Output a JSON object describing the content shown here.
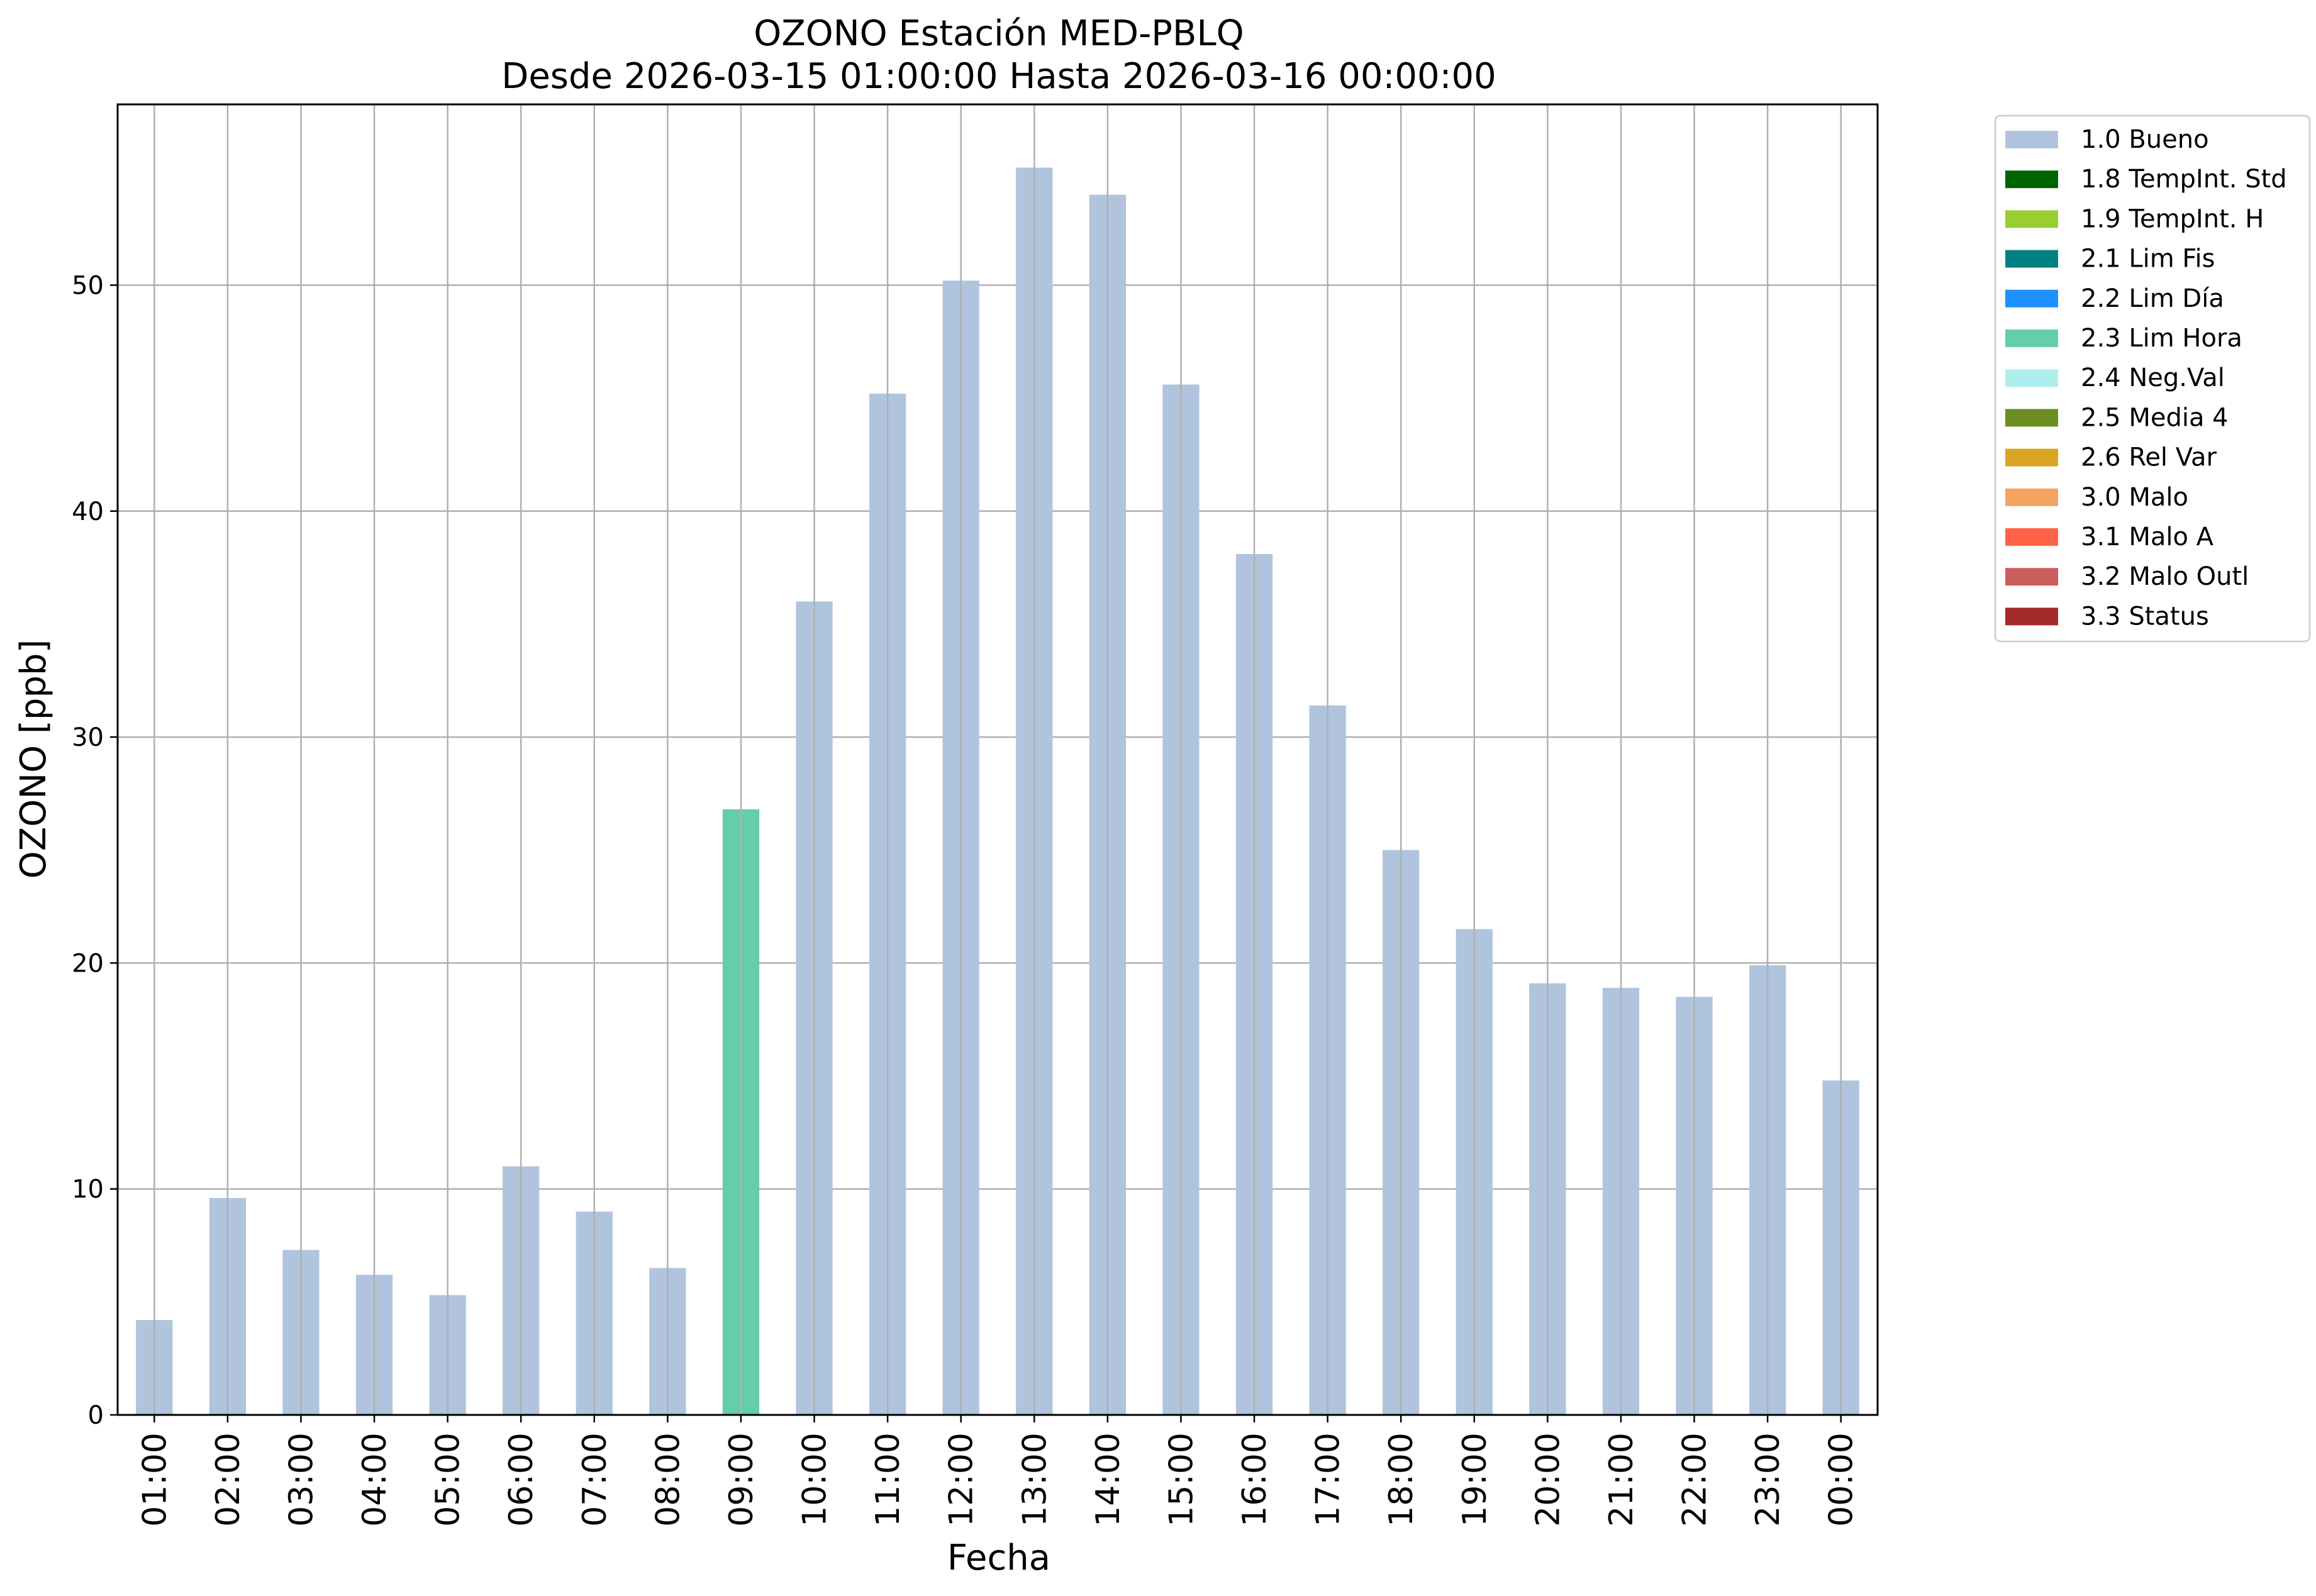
{
  "chart_data": {
    "type": "bar",
    "title": "OZONO Estación MED-PBLQ",
    "subtitle": "Desde 2026-03-15 01:00:00 Hasta 2026-03-16 00:00:00",
    "xlabel": "Fecha",
    "ylabel": "OZONO [ppb]",
    "ylim": [
      0,
      58
    ],
    "yticks": [
      0,
      10,
      20,
      30,
      40,
      50
    ],
    "grid": true,
    "legend_position": "outside-top-right",
    "categories": [
      "01:00",
      "02:00",
      "03:00",
      "04:00",
      "05:00",
      "06:00",
      "07:00",
      "08:00",
      "09:00",
      "10:00",
      "11:00",
      "12:00",
      "13:00",
      "14:00",
      "15:00",
      "16:00",
      "17:00",
      "18:00",
      "19:00",
      "20:00",
      "21:00",
      "22:00",
      "23:00",
      "00:00"
    ],
    "values": [
      4.2,
      9.6,
      7.3,
      6.2,
      5.3,
      11.0,
      9.0,
      6.5,
      26.8,
      36.0,
      45.2,
      50.2,
      55.2,
      54.0,
      45.6,
      38.1,
      31.4,
      25.0,
      21.5,
      19.1,
      18.9,
      18.5,
      19.9,
      14.8
    ],
    "flags": [
      "1.0 Bueno",
      "1.0 Bueno",
      "1.0 Bueno",
      "1.0 Bueno",
      "1.0 Bueno",
      "1.0 Bueno",
      "1.0 Bueno",
      "1.0 Bueno",
      "2.3 Lim Hora",
      "1.0 Bueno",
      "1.0 Bueno",
      "1.0 Bueno",
      "1.0 Bueno",
      "1.0 Bueno",
      "1.0 Bueno",
      "1.0 Bueno",
      "1.0 Bueno",
      "1.0 Bueno",
      "1.0 Bueno",
      "1.0 Bueno",
      "1.0 Bueno",
      "1.0 Bueno",
      "1.0 Bueno",
      "1.0 Bueno"
    ],
    "legend": [
      {
        "label": "1.0 Bueno",
        "color": "#b0c4de"
      },
      {
        "label": "1.8 TempInt. Std",
        "color": "#006400"
      },
      {
        "label": "1.9 TempInt. H",
        "color": "#9acd32"
      },
      {
        "label": "2.1 Lim Fis",
        "color": "#008080"
      },
      {
        "label": "2.2 Lim Día",
        "color": "#1e90ff"
      },
      {
        "label": "2.3 Lim Hora",
        "color": "#66cdaa"
      },
      {
        "label": "2.4 Neg.Val",
        "color": "#afeeee"
      },
      {
        "label": "2.5 Media 4",
        "color": "#6b8e23"
      },
      {
        "label": "2.6 Rel Var",
        "color": "#daa520"
      },
      {
        "label": "3.0 Malo",
        "color": "#f4a460"
      },
      {
        "label": "3.1 Malo A",
        "color": "#ff6347"
      },
      {
        "label": "3.2 Malo Outl",
        "color": "#cd5c5c"
      },
      {
        "label": "3.3 Status",
        "color": "#a52a2a"
      }
    ]
  }
}
